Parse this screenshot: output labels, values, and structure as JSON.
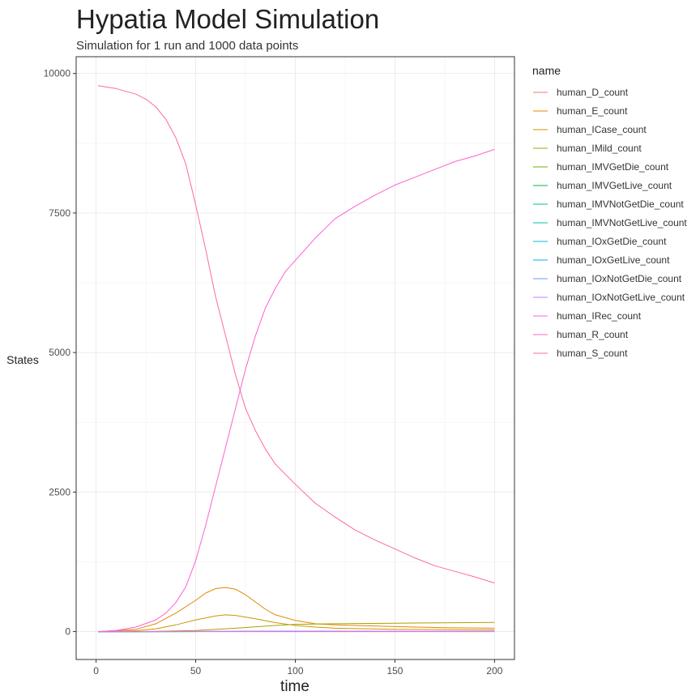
{
  "chart_data": {
    "type": "line",
    "title": "Hypatia Model Simulation",
    "subtitle": "Simulation for 1 run and 1000 data points",
    "xlabel": "time",
    "ylabel": "States",
    "xlim": [
      -10,
      210
    ],
    "ylim": [
      -500,
      10300
    ],
    "x_ticks": [
      0,
      50,
      100,
      150,
      200
    ],
    "x_tick_labels": [
      "0",
      "50",
      "100",
      "150",
      "200"
    ],
    "y_ticks": [
      0,
      2500,
      5000,
      7500,
      10000
    ],
    "y_tick_labels": [
      "0",
      "2500",
      "5000",
      "7500",
      "10000"
    ],
    "grid": true,
    "legend_title": "name",
    "legend_position": "right",
    "series": [
      {
        "name": "human_D_count",
        "color": "#F8766D",
        "x": [
          1,
          100,
          200
        ],
        "y": [
          0,
          0,
          0
        ]
      },
      {
        "name": "human_E_count",
        "color": "#E58700",
        "x": [
          1,
          20,
          30,
          40,
          50,
          55,
          60,
          65,
          70,
          75,
          80,
          85,
          90,
          100,
          110,
          120,
          130,
          150,
          175,
          200
        ],
        "y": [
          0,
          40,
          140,
          330,
          560,
          690,
          770,
          790,
          760,
          660,
          530,
          400,
          300,
          200,
          140,
          120,
          110,
          90,
          70,
          60
        ]
      },
      {
        "name": "human_ICase_count",
        "color": "#C99800",
        "x": [
          1,
          20,
          30,
          40,
          50,
          60,
          65,
          70,
          80,
          90,
          100,
          110,
          120,
          150,
          200
        ],
        "y": [
          0,
          15,
          50,
          120,
          210,
          280,
          300,
          290,
          230,
          160,
          110,
          80,
          60,
          40,
          30
        ]
      },
      {
        "name": "human_IMild_count",
        "color": "#A3A500",
        "x": [
          1,
          30,
          50,
          70,
          90,
          100,
          120,
          150,
          200
        ],
        "y": [
          0,
          5,
          20,
          60,
          110,
          130,
          140,
          150,
          165
        ]
      },
      {
        "name": "human_IMVGetDie_count",
        "color": "#6BB100",
        "x": [
          1,
          100,
          200
        ],
        "y": [
          0,
          2,
          1
        ]
      },
      {
        "name": "human_IMVGetLive_count",
        "color": "#00BA38",
        "x": [
          1,
          100,
          200
        ],
        "y": [
          0,
          3,
          2
        ]
      },
      {
        "name": "human_IMVNotGetDie_count",
        "color": "#00BF7D",
        "x": [
          1,
          100,
          200
        ],
        "y": [
          0,
          1,
          1
        ]
      },
      {
        "name": "human_IMVNotGetLive_count",
        "color": "#00C0AF",
        "x": [
          1,
          100,
          200
        ],
        "y": [
          0,
          1,
          1
        ]
      },
      {
        "name": "human_IOxGetDie_count",
        "color": "#00BCD8",
        "x": [
          1,
          100,
          200
        ],
        "y": [
          0,
          2,
          1
        ]
      },
      {
        "name": "human_IOxGetLive_count",
        "color": "#00B0F6",
        "x": [
          1,
          100,
          200
        ],
        "y": [
          0,
          4,
          2
        ]
      },
      {
        "name": "human_IOxNotGetDie_count",
        "color": "#619CFF",
        "x": [
          1,
          100,
          200
        ],
        "y": [
          0,
          1,
          1
        ]
      },
      {
        "name": "human_IOxNotGetLive_count",
        "color": "#B983FF",
        "x": [
          1,
          100,
          200
        ],
        "y": [
          0,
          1,
          1
        ]
      },
      {
        "name": "human_IRec_count",
        "color": "#E76BF3",
        "x": [
          1,
          100,
          200
        ],
        "y": [
          0,
          5,
          3
        ]
      },
      {
        "name": "human_R_count",
        "color": "#FD61D1",
        "x": [
          1,
          10,
          20,
          30,
          35,
          40,
          45,
          50,
          55,
          60,
          65,
          70,
          75,
          80,
          85,
          90,
          95,
          100,
          110,
          120,
          130,
          140,
          150,
          160,
          170,
          180,
          190,
          200
        ],
        "y": [
          0,
          20,
          80,
          210,
          330,
          520,
          800,
          1270,
          1900,
          2600,
          3300,
          4000,
          4700,
          5300,
          5800,
          6150,
          6450,
          6650,
          7050,
          7400,
          7620,
          7820,
          8000,
          8140,
          8280,
          8420,
          8520,
          8640
        ]
      },
      {
        "name": "human_S_count",
        "color": "#FF67A4",
        "x": [
          1,
          10,
          20,
          25,
          30,
          35,
          40,
          45,
          50,
          55,
          60,
          65,
          70,
          75,
          80,
          85,
          90,
          95,
          100,
          110,
          120,
          130,
          140,
          150,
          160,
          170,
          180,
          190,
          200
        ],
        "y": [
          9780,
          9730,
          9630,
          9540,
          9400,
          9180,
          8850,
          8380,
          7650,
          6850,
          6000,
          5300,
          4600,
          4000,
          3600,
          3270,
          3000,
          2820,
          2640,
          2300,
          2050,
          1820,
          1640,
          1480,
          1320,
          1180,
          1080,
          980,
          870
        ]
      }
    ]
  }
}
